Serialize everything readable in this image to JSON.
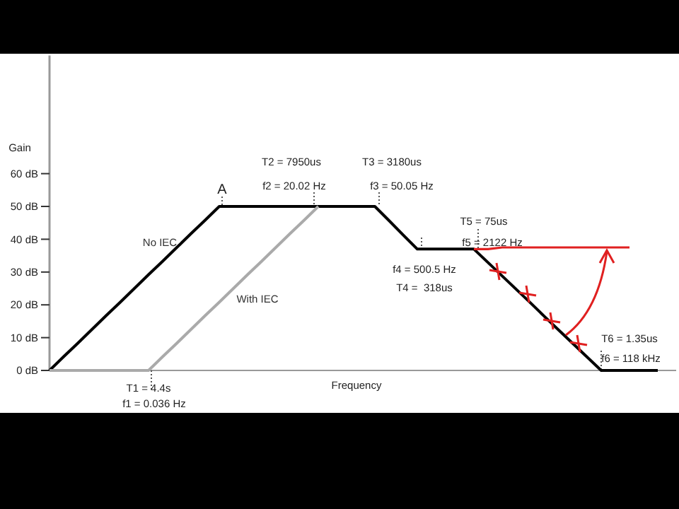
{
  "chart_data": {
    "type": "line",
    "ylabel": "Gain",
    "xlabel": "Frequency",
    "categories": [
      null,
      null,
      null,
      null,
      null,
      null,
      null,
      null,
      null,
      null,
      null,
      null,
      null,
      null,
      null,
      null,
      null,
      null,
      null,
      null,
      null,
      null,
      null,
      null,
      null,
      null,
      null,
      null,
      null,
      null,
      null,
      null,
      null,
      null,
      null,
      null,
      null,
      null,
      null,
      null,
      null,
      null,
      null,
      null,
      null
    ],
    "ylim": [
      0,
      96
    ],
    "yticks": [
      {
        "value": 0,
        "label": "0 dB"
      },
      {
        "value": 10,
        "label": "10 dB"
      },
      {
        "value": 20,
        "label": "20 dB"
      },
      {
        "value": 30,
        "label": "30 dB"
      },
      {
        "value": 40,
        "label": "40 dB"
      },
      {
        "value": 50,
        "label": "50 dB"
      },
      {
        "value": 60,
        "label": "60 dB"
      }
    ],
    "tick_labels": "y",
    "grid": false,
    "series": [
      {
        "name": "No IEC",
        "color": "#000000",
        "values": [
          0,
          4.2,
          8.3,
          12.5,
          16.7,
          20.8,
          25,
          29.2,
          33.3,
          37.5,
          41.7,
          45.8,
          50,
          50,
          50,
          50,
          50,
          50,
          50,
          50,
          50,
          50,
          50,
          50,
          45.7,
          41.3,
          37,
          37,
          37,
          37,
          37,
          32.9,
          28.8,
          24.7,
          20.6,
          16.4,
          12.3,
          8.2,
          4.1,
          0,
          0,
          0,
          0,
          0,
          null
        ]
      },
      {
        "name": "With IEC",
        "color": "#aaaaaa",
        "values": [
          0,
          0,
          0,
          0,
          0,
          0,
          0,
          0,
          4.2,
          8.3,
          12.5,
          16.7,
          20.8,
          25,
          29.2,
          33.3,
          37.5,
          41.7,
          45.8,
          50,
          null,
          null,
          null,
          null,
          null,
          null,
          null,
          null,
          null,
          null,
          null,
          null,
          null,
          null,
          null,
          null,
          null,
          null,
          null,
          null,
          null,
          null,
          null,
          null,
          null
        ]
      },
      {
        "color": "#e02020",
        "values": [
          null,
          null,
          null,
          null,
          null,
          null,
          null,
          null,
          null,
          null,
          null,
          null,
          null,
          null,
          null,
          null,
          null,
          null,
          null,
          null,
          null,
          null,
          null,
          null,
          null,
          null,
          null,
          null,
          null,
          null,
          37,
          37,
          37.5,
          37.5,
          37.5,
          37.5,
          37.5,
          37.5,
          37.5,
          37.5,
          37.5,
          37.5,
          null,
          null,
          null
        ]
      }
    ],
    "annotations": [
      "A",
      "T2 = 7950us",
      "f2 = 20.02 Hz",
      "T3 = 3180us",
      "f3 = 50.05 Hz",
      "T5 = 75us",
      "f5 = 2122 Hz",
      "f4 = 500.5 Hz",
      "T4 =  318us",
      "T6 = 1.35us",
      "f6 = 118 kHz",
      "T1 = 4.4s",
      "f1 = 0.036 Hz"
    ]
  }
}
